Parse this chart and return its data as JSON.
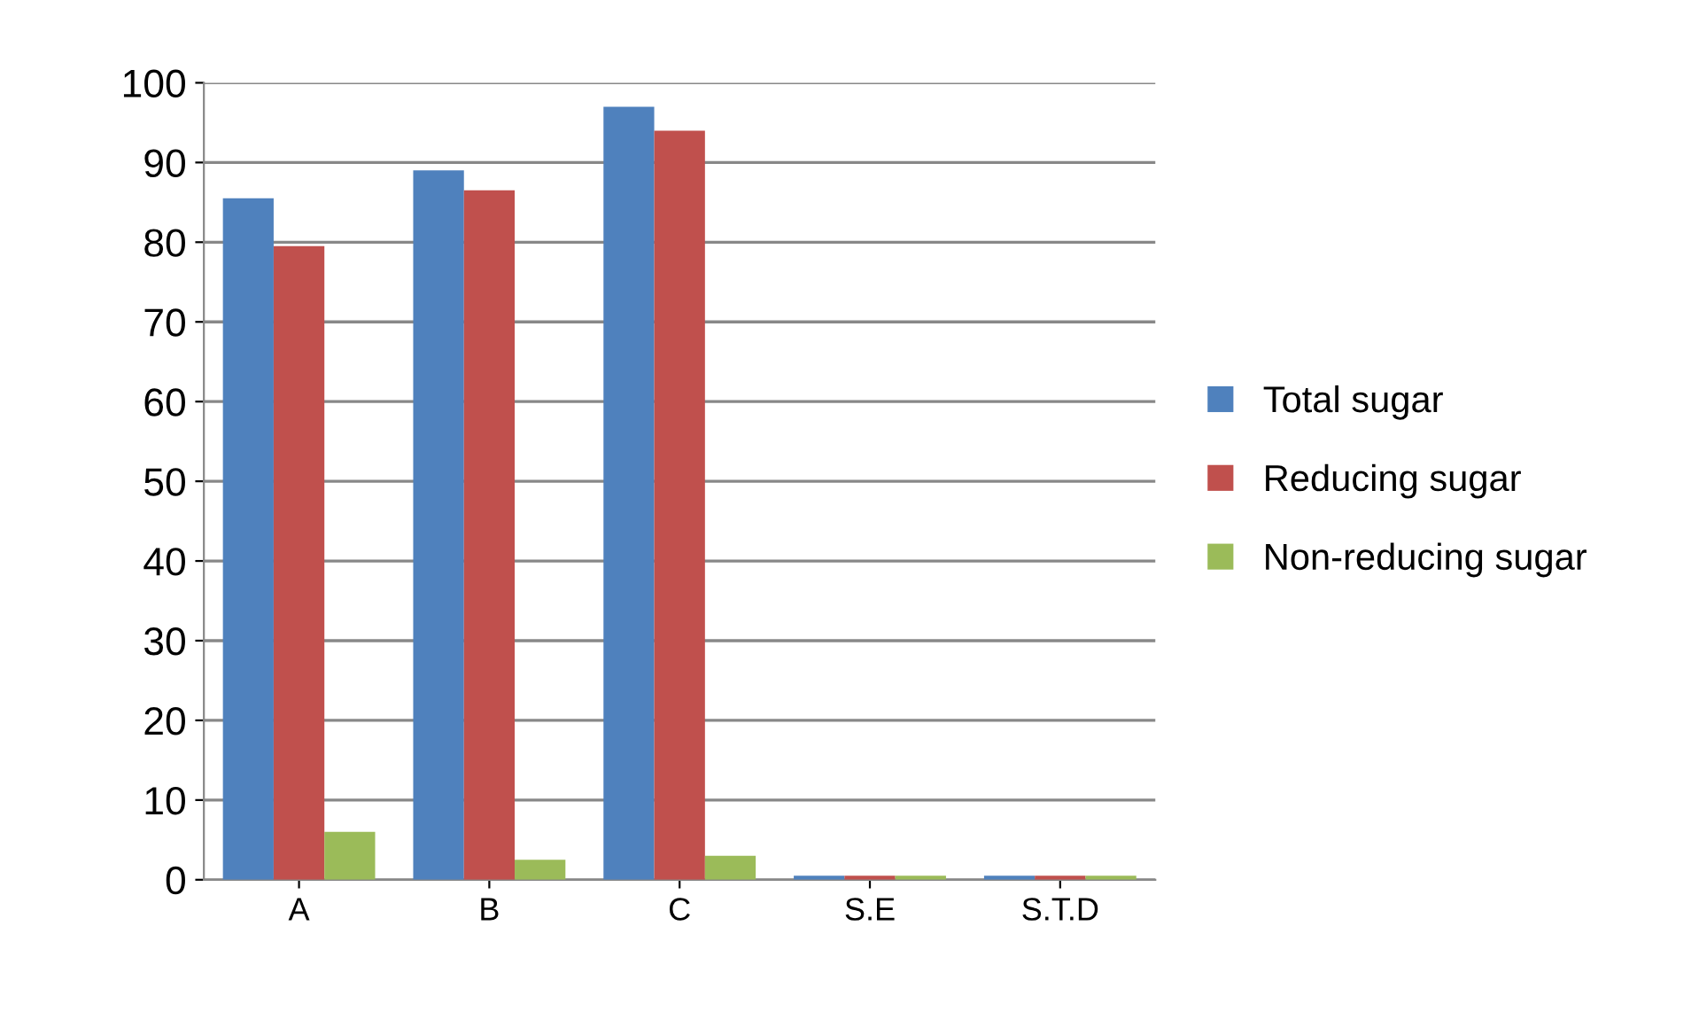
{
  "chart_data": {
    "type": "bar",
    "categories": [
      "A",
      "B",
      "C",
      "S.E",
      "S.T.D"
    ],
    "series": [
      {
        "name": "Total sugar",
        "color": "#4f81bd",
        "values": [
          85.5,
          89,
          97,
          0.5,
          0.5
        ]
      },
      {
        "name": "Reducing sugar",
        "color": "#c0504d",
        "values": [
          79.5,
          86.5,
          94,
          0.5,
          0.5
        ]
      },
      {
        "name": "Non-reducing sugar",
        "color": "#9bbb59",
        "values": [
          6,
          2.5,
          3,
          0.5,
          0.5
        ]
      }
    ],
    "ylim": [
      0,
      100
    ],
    "yticks": [
      0,
      10,
      20,
      30,
      40,
      50,
      60,
      70,
      80,
      90,
      100
    ],
    "grid": "y",
    "legend": "right"
  }
}
